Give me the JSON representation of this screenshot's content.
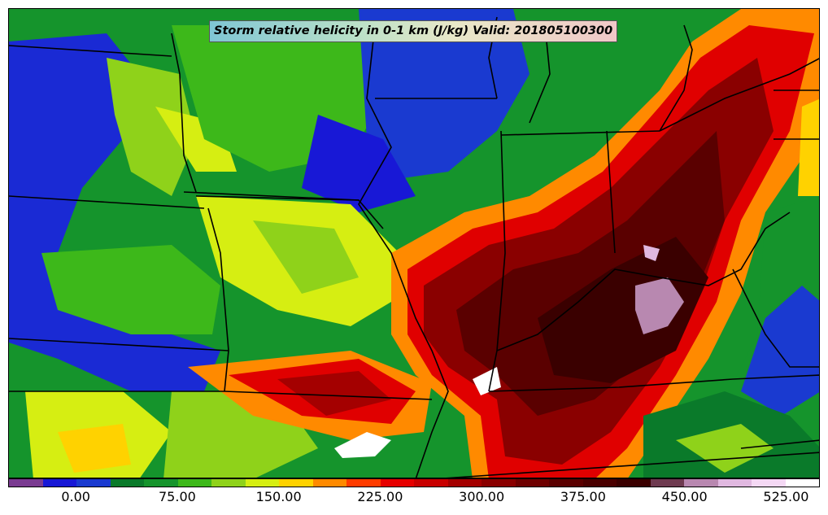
{
  "title": "Storm relative helicity in 0-1 km (J/kg) Valid: 201805100300",
  "colorbar": {
    "colors": [
      "#7a3b91",
      "#1818d6",
      "#1a3ad0",
      "#0a7a2a",
      "#15942c",
      "#3db81a",
      "#8fd21a",
      "#d6ee12",
      "#ffd200",
      "#ff8a00",
      "#ff3c00",
      "#e60000",
      "#c80000",
      "#a40000",
      "#8a0000",
      "#6e0000",
      "#5a0000",
      "#4a0000",
      "#3a0000",
      "#6e3a50",
      "#b888b0",
      "#e0b8e0",
      "#f4d8f4",
      "#ffffff"
    ],
    "ticks": [
      {
        "label": "0.00",
        "value": 0
      },
      {
        "label": "75.00",
        "value": 75
      },
      {
        "label": "150.00",
        "value": 150
      },
      {
        "label": "225.00",
        "value": 225
      },
      {
        "label": "300.00",
        "value": 300
      },
      {
        "label": "375.00",
        "value": 375
      },
      {
        "label": "450.00",
        "value": 450
      },
      {
        "label": "525.00",
        "value": 525
      }
    ],
    "min": -50,
    "max": 550
  },
  "colors": {
    "green": "#1b9e2e",
    "dark_green": "#0b7a23",
    "lime": "#a8e01a",
    "yellow": "#ffd200",
    "blue": "#1a2ad4",
    "purple": "#7a3b91",
    "orange": "#ff8a00",
    "red": "#e00000",
    "dark_red": "#8b0000",
    "maroon": "#4a0000",
    "pink": "#c090c0",
    "white": "#ffffff"
  }
}
